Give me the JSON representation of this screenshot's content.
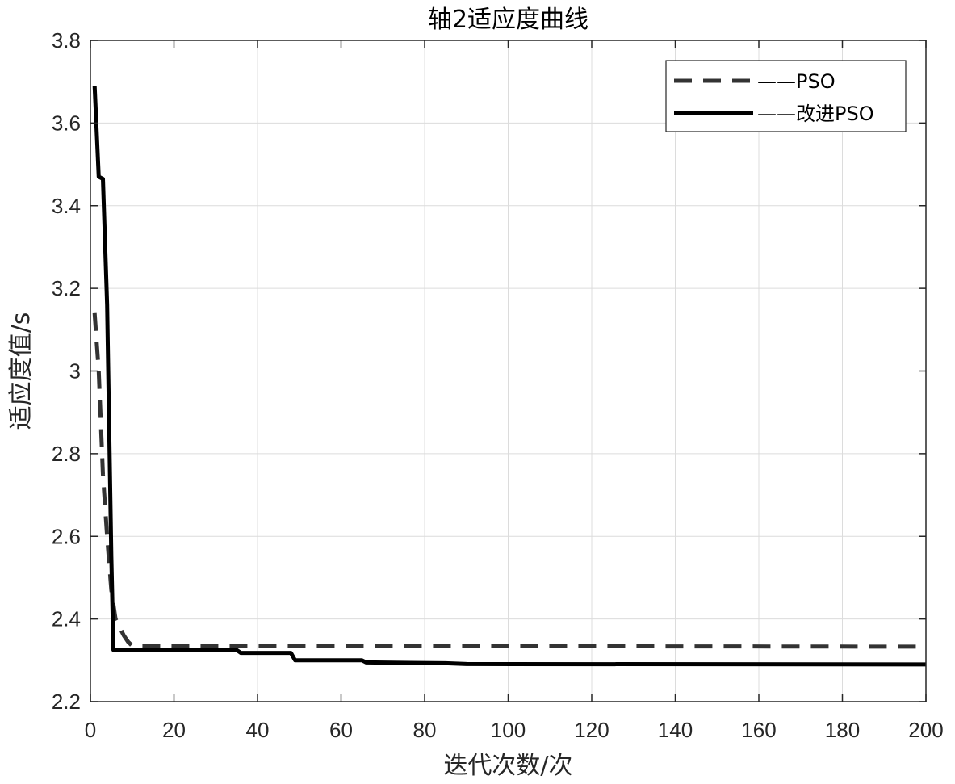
{
  "chart_data": {
    "type": "line",
    "title": "轴2适应度曲线",
    "xlabel": "迭代次数/次",
    "ylabel": "适应度值/s",
    "xlim": [
      0,
      200
    ],
    "ylim": [
      2.2,
      3.8
    ],
    "xticks": [
      0,
      20,
      40,
      60,
      80,
      100,
      120,
      140,
      160,
      180,
      200
    ],
    "yticks": [
      2.2,
      2.4,
      2.6,
      2.8,
      3.0,
      3.2,
      3.4,
      3.6,
      3.8
    ],
    "xtick_labels": [
      "0",
      "20",
      "40",
      "60",
      "80",
      "100",
      "120",
      "140",
      "160",
      "180",
      "200"
    ],
    "ytick_labels": [
      "2.2",
      "2.4",
      "2.6",
      "2.8",
      "3",
      "3.2",
      "3.4",
      "3.6",
      "3.8"
    ],
    "grid": true,
    "legend_position": "top-right",
    "series": [
      {
        "name": "——PSO",
        "style": "dashed",
        "color": "#333333",
        "points": [
          [
            1,
            3.14
          ],
          [
            2,
            3.0
          ],
          [
            3,
            2.75
          ],
          [
            4,
            2.6
          ],
          [
            5,
            2.47
          ],
          [
            6,
            2.4
          ],
          [
            7,
            2.38
          ],
          [
            8,
            2.36
          ],
          [
            9,
            2.345
          ],
          [
            10,
            2.335
          ],
          [
            200,
            2.333
          ]
        ]
      },
      {
        "name": "——改进PSO",
        "style": "solid",
        "color": "#000000",
        "points": [
          [
            1,
            3.69
          ],
          [
            2,
            3.47
          ],
          [
            3,
            3.465
          ],
          [
            4,
            3.16
          ],
          [
            5,
            2.55
          ],
          [
            5.5,
            2.325
          ],
          [
            35,
            2.325
          ],
          [
            36,
            2.318
          ],
          [
            48,
            2.318
          ],
          [
            49,
            2.3
          ],
          [
            65,
            2.3
          ],
          [
            66,
            2.295
          ],
          [
            85,
            2.293
          ],
          [
            90,
            2.291
          ],
          [
            200,
            2.29
          ]
        ]
      }
    ]
  }
}
